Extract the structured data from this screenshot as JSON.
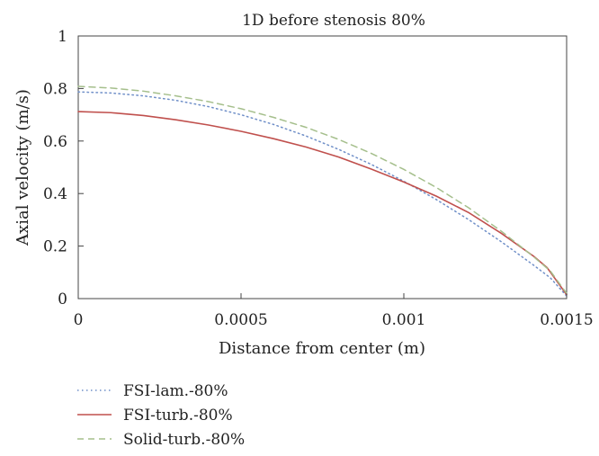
{
  "chart_data": {
    "type": "line",
    "title": "1D before stenosis 80%",
    "xlabel": "Distance from center (m)",
    "ylabel": "Axial velocity (m/s)",
    "xlim": [
      0,
      0.0015
    ],
    "ylim": [
      0,
      1
    ],
    "x_ticks": [
      0,
      0.0005,
      0.001,
      0.0015
    ],
    "x_tick_labels": [
      "0",
      "0.0005",
      "0.001",
      "0.0015"
    ],
    "y_ticks": [
      0,
      0.2,
      0.4,
      0.6,
      0.8,
      1
    ],
    "y_tick_labels": [
      "0",
      "0.2",
      "0.4",
      "0.6",
      "0.8",
      "1"
    ],
    "grid": false,
    "legend_position": "bottom-left",
    "series": [
      {
        "name": "FSI-lam.-80%",
        "color": "#6f8fc8",
        "style": "dotted",
        "x": [
          0,
          0.0001,
          0.0002,
          0.0003,
          0.0004,
          0.0005,
          0.0006,
          0.0007,
          0.0008,
          0.0009,
          0.001,
          0.0011,
          0.0012,
          0.0013,
          0.0014,
          0.00145,
          0.0015
        ],
        "y": [
          0.787,
          0.783,
          0.772,
          0.755,
          0.731,
          0.7,
          0.663,
          0.619,
          0.568,
          0.511,
          0.447,
          0.377,
          0.3,
          0.216,
          0.126,
          0.079,
          0.01
        ]
      },
      {
        "name": "FSI-turb.-80%",
        "color": "#c0504d",
        "style": "solid",
        "x": [
          0,
          0.0001,
          0.0002,
          0.0003,
          0.0004,
          0.0005,
          0.0006,
          0.0007,
          0.0008,
          0.0009,
          0.001,
          0.0011,
          0.0012,
          0.0013,
          0.0014,
          0.00144,
          0.0015
        ],
        "y": [
          0.712,
          0.708,
          0.697,
          0.681,
          0.661,
          0.637,
          0.609,
          0.577,
          0.539,
          0.493,
          0.444,
          0.39,
          0.327,
          0.248,
          0.16,
          0.118,
          0.015
        ]
      },
      {
        "name": "Solid-turb.-80%",
        "color": "#a5bf8c",
        "style": "dashed",
        "x": [
          0,
          0.0001,
          0.0002,
          0.0003,
          0.0004,
          0.0005,
          0.0006,
          0.0007,
          0.0008,
          0.0009,
          0.001,
          0.0011,
          0.0012,
          0.0013,
          0.0014,
          0.00145,
          0.0015
        ],
        "y": [
          0.808,
          0.802,
          0.79,
          0.772,
          0.75,
          0.723,
          0.69,
          0.652,
          0.606,
          0.553,
          0.492,
          0.423,
          0.345,
          0.256,
          0.158,
          0.105,
          0.02
        ]
      }
    ]
  }
}
